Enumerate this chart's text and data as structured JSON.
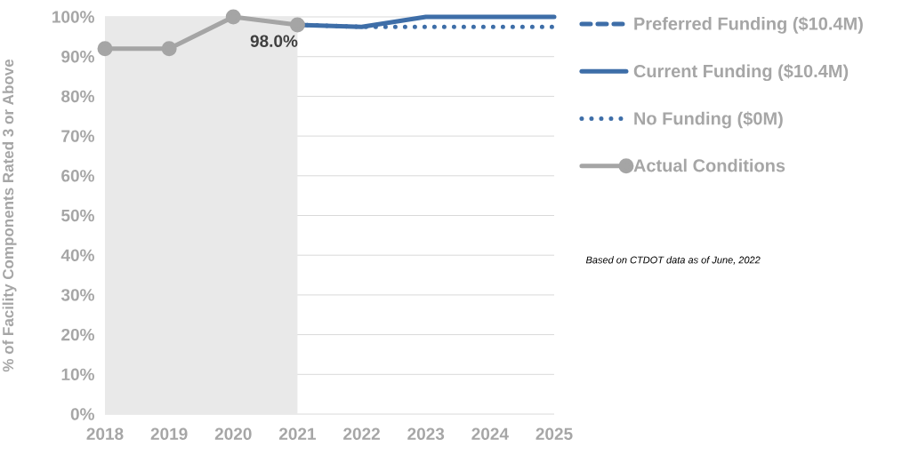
{
  "chart_data": {
    "type": "line",
    "ylabel": "% of Facility Components Rated 3 or Above",
    "categories": [
      "2018",
      "2019",
      "2020",
      "2021",
      "2022",
      "2023",
      "2024",
      "2025"
    ],
    "series": [
      {
        "name": "Preferred Funding ($10.4M)",
        "color": "#3e6ea8",
        "line_style": "dashed",
        "marker": "none",
        "values": [
          null,
          null,
          null,
          null,
          null,
          null,
          null,
          null
        ]
      },
      {
        "name": "Current Funding ($10.4M)",
        "color": "#3e6ea8",
        "line_style": "solid",
        "marker": "none",
        "values": [
          null,
          null,
          null,
          98.0,
          97.5,
          100,
          100,
          100
        ]
      },
      {
        "name": "No Funding ($0M)",
        "color": "#3e6ea8",
        "line_style": "dotted",
        "marker": "none",
        "values": [
          null,
          null,
          null,
          98.0,
          97.5,
          97.5,
          97.5,
          97.5
        ]
      },
      {
        "name": "Actual Conditions",
        "color": "#a5a5a5",
        "line_style": "solid",
        "marker": "circle",
        "values": [
          92,
          92,
          100,
          98.0,
          null,
          null,
          null,
          null
        ],
        "value_labels": [
          null,
          null,
          null,
          "98.0%",
          null,
          null,
          null,
          null
        ]
      }
    ],
    "ylim": [
      0,
      100
    ],
    "yticks": [
      {
        "value": 0,
        "label": "0%"
      },
      {
        "value": 10,
        "label": "10%"
      },
      {
        "value": 20,
        "label": "20%"
      },
      {
        "value": 30,
        "label": "30%"
      },
      {
        "value": 40,
        "label": "40%"
      },
      {
        "value": 50,
        "label": "50%"
      },
      {
        "value": 60,
        "label": "60%"
      },
      {
        "value": 70,
        "label": "70%"
      },
      {
        "value": 80,
        "label": "80%"
      },
      {
        "value": 90,
        "label": "90%"
      },
      {
        "value": 100,
        "label": "100%"
      }
    ],
    "bands": [
      {
        "axis": "x",
        "from": "2018",
        "to": "2021",
        "color": "#e9e9e9"
      }
    ],
    "grid": "y",
    "legend": "right",
    "annotations": [
      "Based on CTDOT data as of June, 2022"
    ]
  }
}
